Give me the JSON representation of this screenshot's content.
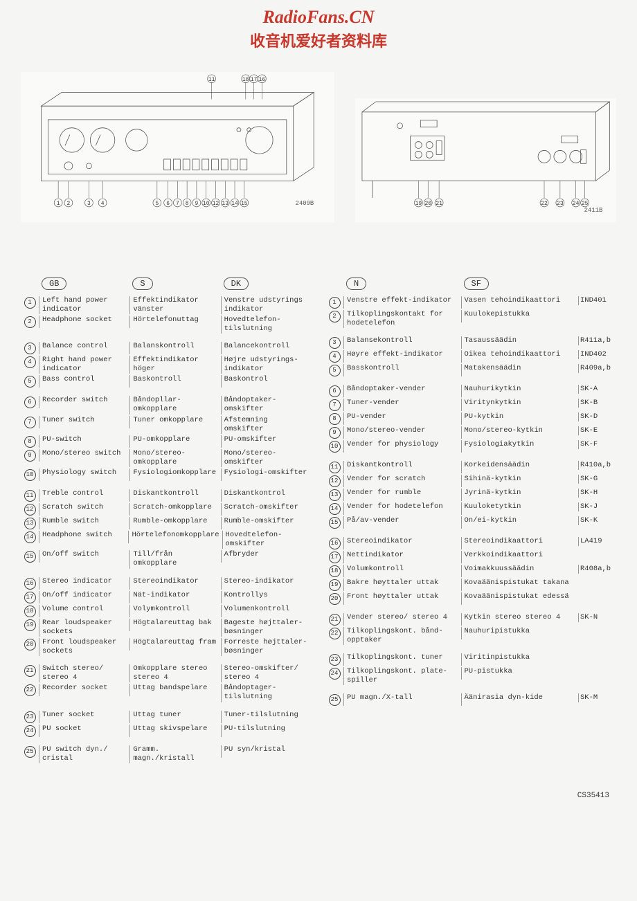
{
  "header": {
    "title": "RadioFans.CN",
    "subtitle": "收音机爱好者资料库"
  },
  "diagram_labels": {
    "front_top": [
      "11",
      "18",
      "17",
      "16"
    ],
    "front_bottom": [
      "1",
      "2",
      "3",
      "4",
      "5",
      "6",
      "7",
      "8",
      "9",
      "10",
      "12",
      "13",
      "14",
      "15"
    ],
    "front_code": "2409B",
    "back_bottom_left": [
      "19",
      "20",
      "21"
    ],
    "back_bottom_right": [
      "22",
      "23",
      "24",
      "25"
    ],
    "back_code": "2411B"
  },
  "languages_left": [
    "GB",
    "S",
    "DK"
  ],
  "languages_right": [
    "N",
    "SF"
  ],
  "rows": [
    {
      "n": 1,
      "gb": "Left hand power indicator",
      "s": "Effektindikator vänster",
      "dk": "Venstre udstyrings indikator",
      "no": "Venstre effekt-indikator",
      "sf": "Vasen tehoindikaattori",
      "ref": "IND401"
    },
    {
      "n": 2,
      "gb": "Headphone socket",
      "s": "Hörtelefonuttag",
      "dk": "Hovedtelefon-tilslutning",
      "no": "Tilkoplingskontakt for hodetelefon",
      "sf": "Kuulokepistukka",
      "ref": ""
    },
    {
      "gap": true
    },
    {
      "n": 3,
      "gb": "Balance control",
      "s": "Balanskontroll",
      "dk": "Balancekontroll",
      "no": "Balansekontroll",
      "sf": "Tasaussäädin",
      "ref": "R411a,b"
    },
    {
      "n": 4,
      "gb": "Right hand power indicator",
      "s": "Effektindikator höger",
      "dk": "Højre udstyrings-indikator",
      "no": "Høyre effekt-indikator",
      "sf": "Oikea tehoindikaattori",
      "ref": "IND402"
    },
    {
      "n": 5,
      "gb": "Bass control",
      "s": "Baskontroll",
      "dk": "Baskontrol",
      "no": "Basskontroll",
      "sf": "Matakensäädin",
      "ref": "R409a,b"
    },
    {
      "gap": true
    },
    {
      "n": 6,
      "gb": "Recorder switch",
      "s": "Båndopllar-omkopplare",
      "dk": "Båndoptaker-omskifter",
      "no": "Båndoptaker-vender",
      "sf": "Nauhurikytkin",
      "ref": "SK-A"
    },
    {
      "n": 7,
      "gb": "Tuner switch",
      "s": "Tuner omkopplare",
      "dk": "Afstemning omskifter",
      "no": "Tuner-vender",
      "sf": "Viritynkytkin",
      "ref": "SK-B"
    },
    {
      "n": 8,
      "gb": "PU-switch",
      "s": "PU-omkopplare",
      "dk": "PU-omskifter",
      "no": "PU-vender",
      "sf": "PU-kytkin",
      "ref": "SK-D"
    },
    {
      "n": 9,
      "gb": "Mono/stereo switch",
      "s": "Mono/stereo-omkopplare",
      "dk": "Mono/stereo-omskifter",
      "no": "Mono/stereo-vender",
      "sf": "Mono/stereo-kytkin",
      "ref": "SK-E"
    },
    {
      "n": 10,
      "gb": "Physiology switch",
      "s": "Fysiologiomkopplare",
      "dk": "Fysiologi-omskifter",
      "no": "Vender for physiology",
      "sf": "Fysiologiakytkin",
      "ref": "SK-F"
    },
    {
      "gap": true
    },
    {
      "n": 11,
      "gb": "Treble control",
      "s": "Diskantkontroll",
      "dk": "Diskantkontrol",
      "no": "Diskantkontroll",
      "sf": "Korkeidensäädin",
      "ref": "R410a,b"
    },
    {
      "n": 12,
      "gb": "Scratch switch",
      "s": "Scratch-omkopplare",
      "dk": "Scratch-omskifter",
      "no": "Vender for scratch",
      "sf": "Sihinä-kytkin",
      "ref": "SK-G"
    },
    {
      "n": 13,
      "gb": "Rumble switch",
      "s": "Rumble-omkopplare",
      "dk": "Rumble-omskifter",
      "no": "Vender for rumble",
      "sf": "Jyrinä-kytkin",
      "ref": "SK-H"
    },
    {
      "n": 14,
      "gb": "Headphone switch",
      "s": "Hörtelefonomkopplare",
      "dk": "Hovedtelefon-omskifter",
      "no": "Vender for hodetelefon",
      "sf": "Kuuloketytkin",
      "ref": "SK-J"
    },
    {
      "n": 15,
      "gb": "On/off switch",
      "s": "Till/från omkopplare",
      "dk": "Afbryder",
      "no": "På/av-vender",
      "sf": "On/ei-kytkin",
      "ref": "SK-K"
    },
    {
      "gap": true
    },
    {
      "n": 16,
      "gb": "Stereo indicator",
      "s": "Stereoindikator",
      "dk": "Stereo-indikator",
      "no": "Stereoindikator",
      "sf": "Stereoindikaattori",
      "ref": "LA419"
    },
    {
      "n": 17,
      "gb": "On/off indicator",
      "s": "Nät-indikator",
      "dk": "Kontrollys",
      "no": "Nettindikator",
      "sf": "Verkkoindikaattori",
      "ref": ""
    },
    {
      "n": 18,
      "gb": "Volume control",
      "s": "Volymkontroll",
      "dk": "Volumenkontroll",
      "no": "Volumkontroll",
      "sf": "Voimakkuussäädin",
      "ref": "R408a,b"
    },
    {
      "n": 19,
      "gb": "Rear loudspeaker sockets",
      "s": "Högtalareuttag bak",
      "dk": "Bageste højttaler-bøsninger",
      "no": "Bakre høyttaler uttak",
      "sf": "Kovaäänispistukat takana",
      "ref": ""
    },
    {
      "n": 20,
      "gb": "Front loudspeaker sockets",
      "s": "Högtalareuttag fram",
      "dk": "Forreste højttaler-bøsninger",
      "no": "Front høyttaler uttak",
      "sf": "Kovaäänispistukat edessä",
      "ref": ""
    },
    {
      "gap": true
    },
    {
      "n": 21,
      "gb": "Switch stereo/ stereo 4",
      "s": "Omkopplare stereo stereo 4",
      "dk": "Stereo-omskifter/ stereo 4",
      "no": "Vender stereo/ stereo 4",
      "sf": "Kytkin stereo stereo 4",
      "ref": "SK-N"
    },
    {
      "n": 22,
      "gb": "Recorder socket",
      "s": "Uttag bandspelare",
      "dk": "Båndoptager-tilslutning",
      "no": "Tilkoplingskont. bånd-opptaker",
      "sf": "Nauhuripistukka",
      "ref": ""
    },
    {
      "gap": true
    },
    {
      "n": 23,
      "gb": "Tuner socket",
      "s": "Uttag tuner",
      "dk": "Tuner-tilslutning",
      "no": "Tilkoplingskont. tuner",
      "sf": "Viritinpistukka",
      "ref": ""
    },
    {
      "n": 24,
      "gb": "PU socket",
      "s": "Uttag skivspelare",
      "dk": "PU-tilslutning",
      "no": "Tilkoplingskont. plate-spiller",
      "sf": "PU-pistukka",
      "ref": ""
    },
    {
      "gap": true
    },
    {
      "n": 25,
      "gb": "PU switch dyn./ cristal",
      "s": "Gramm. magn./kristall",
      "dk": "PU syn/kristal",
      "no": "PU magn./X-tall",
      "sf": "Äänirasia dyn-kide",
      "ref": "SK-M"
    }
  ],
  "footer": "CS35413"
}
